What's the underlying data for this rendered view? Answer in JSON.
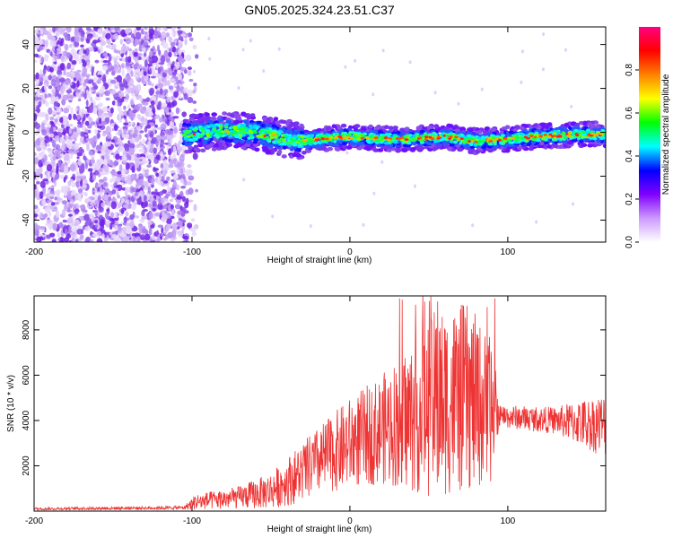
{
  "title": "GN05.2025.324.23.51.C37",
  "chart_data": [
    {
      "type": "heatmap",
      "xlabel": "Height of straight line (km)",
      "ylabel": "Frequency (Hz)",
      "xlim": [
        -200,
        162
      ],
      "ylim": [
        -50,
        48
      ],
      "xticks": [
        -200,
        -100,
        0,
        100
      ],
      "yticks": [
        -40,
        -20,
        0,
        20,
        40
      ],
      "colorbar": {
        "label": "Normalized spectral amplitude",
        "range": [
          0,
          1
        ],
        "ticks": [
          0.0,
          0.2,
          0.4,
          0.6,
          0.8
        ],
        "tick_labels": [
          "0.0",
          "0.2",
          "0.4",
          "0.6",
          "0.8"
        ],
        "colors": [
          "#ffffff",
          "#cc99ff",
          "#8000ff",
          "#0000ff",
          "#00ffff",
          "#00ff00",
          "#ffff00",
          "#ff8000",
          "#ff0000",
          "#ff0080"
        ]
      },
      "noise_region_x": [
        -200,
        -105
      ],
      "signal": {
        "x_start": -105,
        "x_end": 162,
        "centerline": [
          {
            "x": -105,
            "f": -1
          },
          {
            "x": -80,
            "f": 1
          },
          {
            "x": -60,
            "f": 0
          },
          {
            "x": -40,
            "f": -3
          },
          {
            "x": -30,
            "f": -4
          },
          {
            "x": -20,
            "f": -3
          },
          {
            "x": 0,
            "f": -2
          },
          {
            "x": 20,
            "f": -3
          },
          {
            "x": 40,
            "f": -3
          },
          {
            "x": 60,
            "f": -2
          },
          {
            "x": 80,
            "f": -4
          },
          {
            "x": 100,
            "f": -3
          },
          {
            "x": 120,
            "f": -2
          },
          {
            "x": 140,
            "f": -1
          },
          {
            "x": 162,
            "f": -1
          }
        ]
      }
    },
    {
      "type": "line",
      "series": [
        {
          "name": "SNR",
          "color": "#ee3333"
        }
      ],
      "xlabel": "Height of straight line (km)",
      "ylabel": "SNR (10 * v/v)",
      "xlim": [
        -200,
        162
      ],
      "ylim": [
        0,
        9500
      ],
      "xticks": [
        -200,
        -100,
        0,
        100
      ],
      "yticks": [
        2000,
        4000,
        6000,
        8000
      ],
      "envelope": [
        {
          "x": -200,
          "base": 100,
          "amp": 60
        },
        {
          "x": -105,
          "base": 150,
          "amp": 80
        },
        {
          "x": -98,
          "base": 400,
          "amp": 350
        },
        {
          "x": -70,
          "base": 600,
          "amp": 500
        },
        {
          "x": -50,
          "base": 900,
          "amp": 800
        },
        {
          "x": -35,
          "base": 1500,
          "amp": 1200
        },
        {
          "x": -20,
          "base": 2200,
          "amp": 1500
        },
        {
          "x": 0,
          "base": 3000,
          "amp": 2000
        },
        {
          "x": 20,
          "base": 3600,
          "amp": 2400
        },
        {
          "x": 40,
          "base": 4200,
          "amp": 3400
        },
        {
          "x": 55,
          "base": 4800,
          "amp": 4200
        },
        {
          "x": 75,
          "base": 5000,
          "amp": 4200
        },
        {
          "x": 92,
          "base": 4300,
          "amp": 3000
        },
        {
          "x": 94,
          "base": 4200,
          "amp": 500
        },
        {
          "x": 130,
          "base": 4000,
          "amp": 600
        },
        {
          "x": 160,
          "base": 3800,
          "amp": 1400
        }
      ]
    }
  ]
}
